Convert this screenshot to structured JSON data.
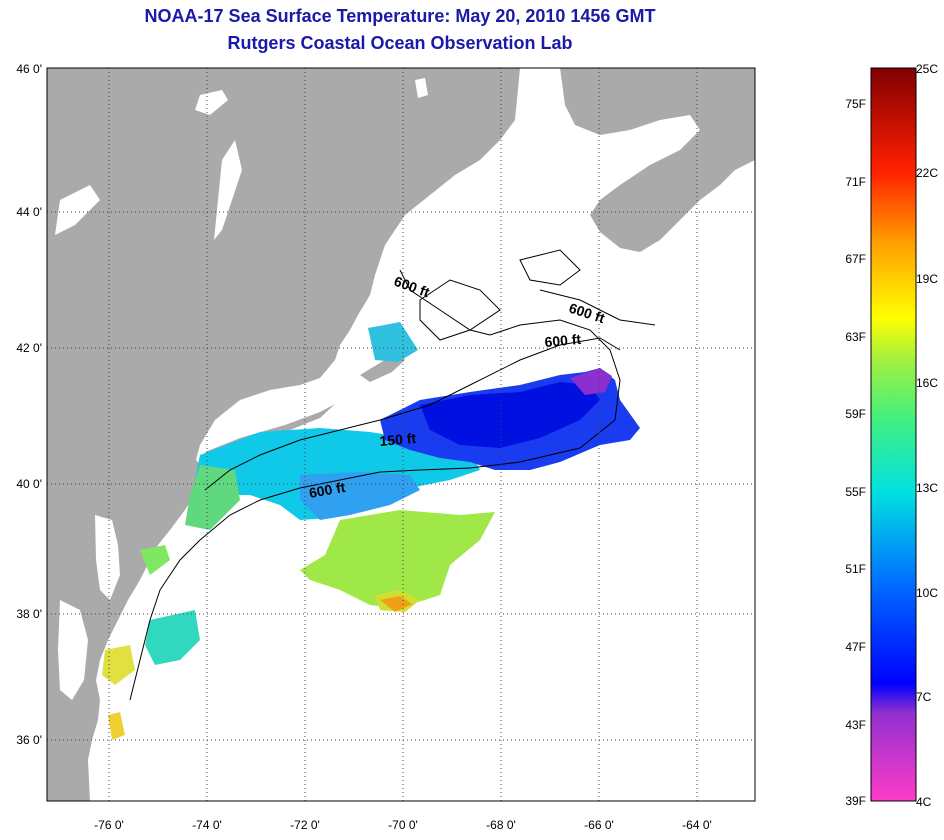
{
  "header": {
    "title_line1": "NOAA-17 Sea Surface Temperature:  May 20, 2010 1456 GMT",
    "title_line2": "Rutgers Coastal Ocean Observation Lab"
  },
  "map": {
    "lat_labels": [
      "46 0'",
      "44 0'",
      "42 0'",
      "40 0'",
      "38 0'",
      "36 0'"
    ],
    "lon_labels": [
      "-76 0'",
      "-74 0'",
      "-72 0'",
      "-70 0'",
      "-68 0'",
      "-66 0'",
      "-64 0'"
    ],
    "contour_labels": [
      "600 ft",
      "600 ft",
      "600 ft",
      "150 ft",
      "600 ft"
    ],
    "land_color": "#aaaaaa",
    "water_color": "#ffffff"
  },
  "colorbar": {
    "fahrenheit_labels": [
      "75F",
      "71F",
      "67F",
      "63F",
      "59F",
      "55F",
      "51F",
      "47F",
      "43F",
      "39F"
    ],
    "celsius_labels": [
      "25C",
      "22C",
      "19C",
      "16C",
      "13C",
      "10C",
      "7C",
      "4C"
    ]
  }
}
